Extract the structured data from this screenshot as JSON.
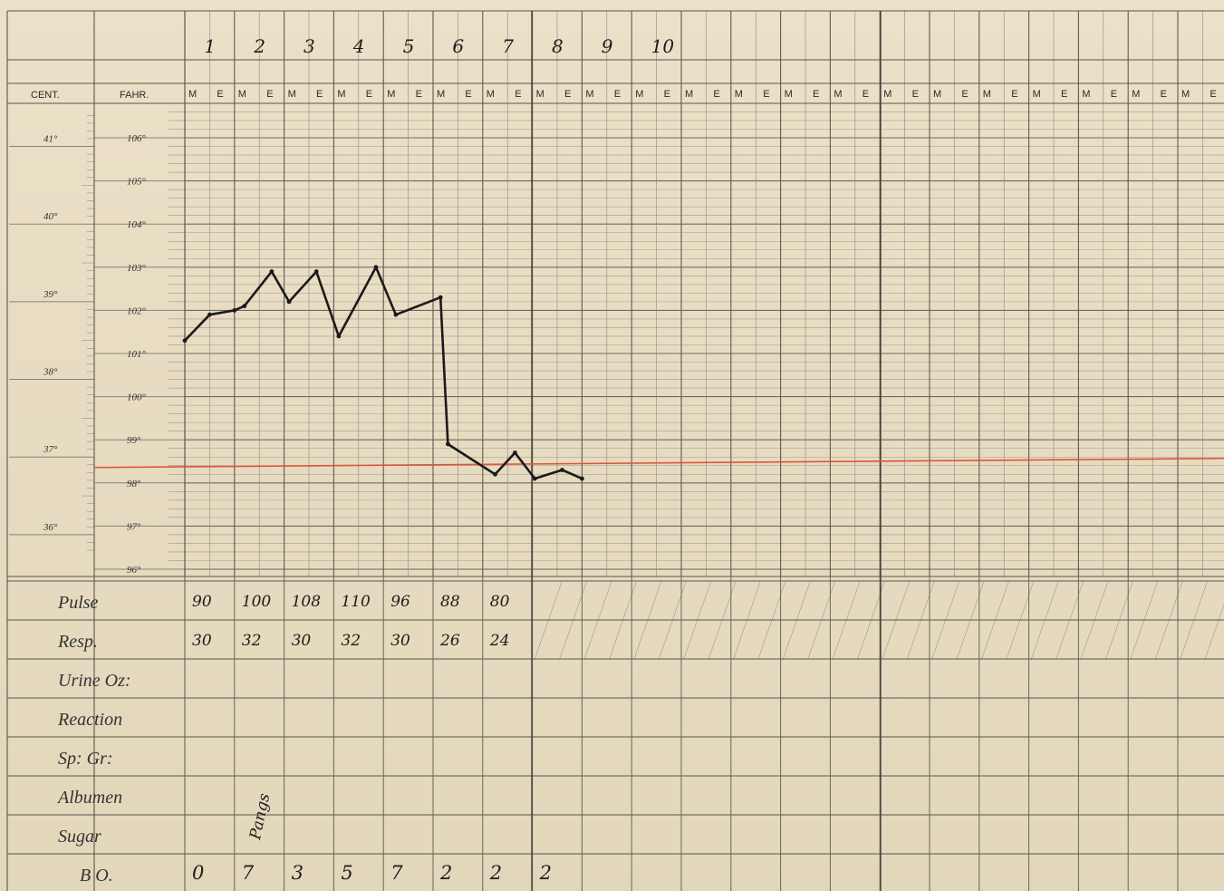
{
  "headers": {
    "centigrade": "CENT.",
    "fahrenheit": "FAHR.",
    "morning": "M",
    "evening": "E"
  },
  "day_numbers": [
    "1",
    "2",
    "3",
    "4",
    "5",
    "6",
    "7",
    "8",
    "9",
    "10"
  ],
  "centigrade_ticks": [
    {
      "label": "41°",
      "value": 41
    },
    {
      "label": "40°",
      "value": 40
    },
    {
      "label": "39°",
      "value": 39
    },
    {
      "label": "38°",
      "value": 38
    },
    {
      "label": "37°",
      "value": 37
    },
    {
      "label": "36°",
      "value": 36
    }
  ],
  "row_labels": [
    "Pulse",
    "Resp.",
    "Urine Oz:",
    "Reaction",
    "Sp: Gr:",
    "Albumen",
    "Sugar",
    "B O."
  ],
  "colors": {
    "normal_line": "#e0533a",
    "ink": "#1a1a1a",
    "grid": "#8b8478"
  },
  "chart_data": {
    "type": "line",
    "title": "",
    "xlabel": "",
    "ylabel": "FAHR.",
    "ylim": [
      96,
      106.6
    ],
    "y_ticks": [
      "106°",
      "105°",
      "104°",
      "103°",
      "102°",
      "101°",
      "100°",
      "99°",
      "98°",
      "97°",
      "96°"
    ],
    "x_ticks": [
      "M",
      "E",
      "M",
      "E",
      "M",
      "E",
      "M",
      "E",
      "M",
      "E",
      "M",
      "E",
      "M",
      "E",
      "M",
      "E",
      "M",
      "E",
      "M",
      "E",
      "M",
      "E",
      "M",
      "E",
      "M",
      "E",
      "M",
      "E",
      "M",
      "E",
      "M",
      "E",
      "M",
      "E",
      "M",
      "E",
      "M",
      "E",
      "M",
      "E",
      "M",
      "E",
      "M",
      "E",
      "M",
      "E",
      "M",
      "E",
      "M",
      "E",
      "M",
      "E"
    ],
    "normal_line": 98.4,
    "series": [
      {
        "points": [
          {
            "x": 0.0,
            "y": 101.3
          },
          {
            "x": 0.5,
            "y": 101.9
          },
          {
            "x": 1.0,
            "y": 102.0
          },
          {
            "x": 1.2,
            "y": 102.1
          },
          {
            "x": 1.75,
            "y": 102.9
          },
          {
            "x": 2.1,
            "y": 102.2
          },
          {
            "x": 2.65,
            "y": 102.9
          },
          {
            "x": 3.1,
            "y": 101.4
          },
          {
            "x": 3.85,
            "y": 103.0
          },
          {
            "x": 4.25,
            "y": 101.9
          },
          {
            "x": 5.15,
            "y": 102.3
          },
          {
            "x": 5.3,
            "y": 98.9
          },
          {
            "x": 6.25,
            "y": 98.2
          },
          {
            "x": 6.65,
            "y": 98.7
          },
          {
            "x": 7.05,
            "y": 98.1
          },
          {
            "x": 7.6,
            "y": 98.3
          },
          {
            "x": 8.0,
            "y": 98.1
          }
        ]
      }
    ]
  },
  "table": {
    "pulse": [
      "90",
      "100",
      "108",
      "110",
      "96",
      "88",
      "80"
    ],
    "resp": [
      "30",
      "32",
      "30",
      "32",
      "30",
      "26",
      "24"
    ],
    "bo": [
      "0",
      "7",
      "3",
      "5",
      "7",
      "2",
      "2",
      "2"
    ],
    "albumen_note": "Pangs"
  }
}
